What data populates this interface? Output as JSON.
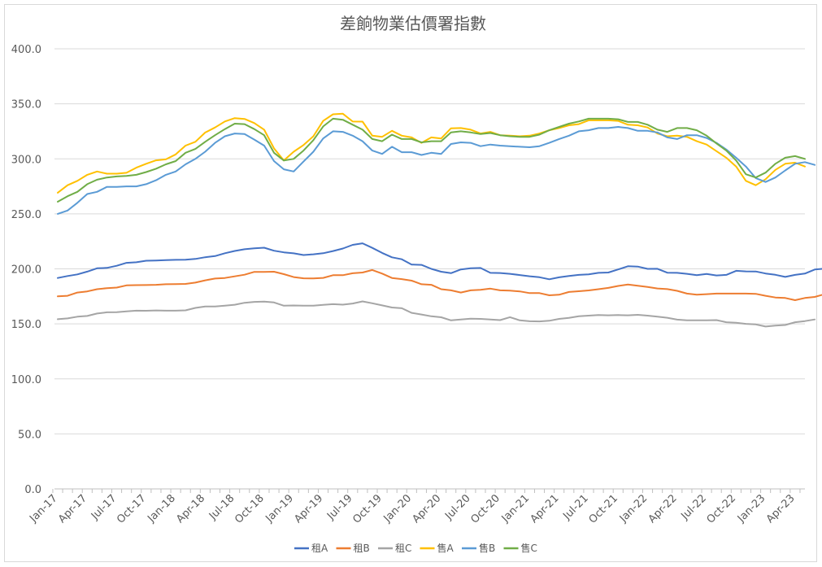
{
  "chart_data": {
    "type": "line",
    "title": "差餉物業估價署指數",
    "xlabel": "",
    "ylabel": "",
    "ylim": [
      0,
      400
    ],
    "yticks": [
      "0.0",
      "50.0",
      "100.0",
      "150.0",
      "200.0",
      "250.0",
      "300.0",
      "350.0",
      "400.0"
    ],
    "grid": true,
    "legend_position": "bottom",
    "x_tick_labels": [
      "Jan-17",
      "Apr-17",
      "Jul-17",
      "Oct-17",
      "Jan-18",
      "Apr-18",
      "Jul-18",
      "Oct-18",
      "Jan-19",
      "Apr-19",
      "Jul-19",
      "Oct-19",
      "Jan-20",
      "Apr-20",
      "Jul-20",
      "Oct-20",
      "Jan-21",
      "Apr-21",
      "Jul-21",
      "Oct-21",
      "Jan-22",
      "Apr-22",
      "Jul-22",
      "Oct-22",
      "Jan-23",
      "Apr-23"
    ],
    "x_start": "Jan-17",
    "x_end": "May-23",
    "series": [
      {
        "name": "租A",
        "color": "#4472c4",
        "values": [
          191.7,
          193.5,
          195.0,
          197.5,
          200.5,
          200.9,
          202.8,
          205.5,
          206.0,
          207.4,
          207.6,
          208.0,
          208.2,
          208.3,
          209.0,
          210.6,
          211.6,
          214.2,
          216.3,
          217.8,
          218.7,
          219.2,
          216.5,
          215.0,
          214.1,
          212.6,
          213.2,
          214.2,
          216.2,
          218.5,
          221.8,
          223.2,
          219.1,
          214.5,
          210.5,
          208.7,
          203.9,
          203.6,
          200.0,
          197.4,
          196.1,
          199.5,
          200.5,
          200.8,
          196.4,
          196.2,
          195.5,
          194.4,
          193.3,
          192.4,
          190.5,
          192.3,
          193.5,
          194.5,
          195.0,
          196.4,
          196.7,
          199.5,
          202.4,
          202.1,
          200.0,
          200.1,
          196.5,
          196.4,
          195.5,
          194.3,
          195.4,
          194.0,
          194.5,
          198.2,
          197.7,
          197.6,
          195.8,
          194.6,
          192.7,
          194.5,
          195.7,
          199.4,
          200.2
        ]
      },
      {
        "name": "租B",
        "color": "#ed7d31",
        "values": [
          175.0,
          175.5,
          178.5,
          179.5,
          181.5,
          182.5,
          183.0,
          185.0,
          185.2,
          185.3,
          185.5,
          186.0,
          186.2,
          186.3,
          187.5,
          189.6,
          191.2,
          191.7,
          193.2,
          194.7,
          197.3,
          197.2,
          197.4,
          195.2,
          192.5,
          191.4,
          191.3,
          191.8,
          194.2,
          194.2,
          196.0,
          196.7,
          199.0,
          195.7,
          191.7,
          190.7,
          189.3,
          186.0,
          185.5,
          181.5,
          180.5,
          178.5,
          180.5,
          181.0,
          182.0,
          180.5,
          180.2,
          179.5,
          178.0,
          178.0,
          176.0,
          176.5,
          179.0,
          179.7,
          180.4,
          181.5,
          182.7,
          184.5,
          185.8,
          184.7,
          183.6,
          182.2,
          181.6,
          180.0,
          177.5,
          176.5,
          177.0,
          177.5,
          177.5,
          177.5,
          177.5,
          177.3,
          175.5,
          174.0,
          173.5,
          171.5,
          173.5,
          174.5,
          177.0,
          179.0
        ]
      },
      {
        "name": "租C",
        "color": "#a5a5a5",
        "values": [
          154.2,
          155.0,
          156.5,
          157.2,
          159.4,
          160.5,
          160.7,
          161.3,
          162.0,
          161.9,
          162.2,
          162.0,
          162.0,
          162.3,
          164.5,
          165.8,
          165.8,
          166.5,
          167.4,
          169.2,
          170.0,
          170.2,
          169.5,
          166.5,
          166.7,
          166.5,
          166.5,
          167.3,
          167.9,
          167.5,
          168.5,
          170.4,
          168.7,
          166.8,
          164.9,
          164.2,
          160.0,
          158.5,
          156.9,
          156.0,
          153.2,
          154.0,
          154.7,
          154.5,
          154.0,
          153.4,
          156.1,
          153.2,
          152.4,
          152.2,
          152.8,
          154.5,
          155.5,
          156.9,
          157.5,
          158.0,
          157.8,
          158.0,
          157.8,
          158.2,
          157.5,
          156.5,
          155.6,
          153.9,
          153.2,
          153.2,
          153.2,
          153.4,
          151.5,
          151.0,
          150.0,
          149.5,
          147.6,
          148.5,
          149.0,
          151.5,
          152.5,
          154.0
        ]
      },
      {
        "name": "售A",
        "color": "#ffc000",
        "values": [
          269.2,
          276.0,
          280.0,
          285.5,
          288.5,
          286.5,
          286.5,
          287.3,
          292.0,
          295.5,
          298.6,
          299.5,
          304.0,
          312.0,
          315.5,
          323.9,
          328.5,
          334.0,
          337.0,
          336.3,
          332.5,
          326.5,
          309.5,
          298.5,
          306.5,
          312.5,
          320.5,
          334.5,
          340.5,
          341.0,
          333.9,
          333.8,
          321.0,
          320.0,
          325.5,
          321.0,
          319.5,
          314.5,
          319.5,
          318.5,
          327.8,
          328.0,
          326.5,
          323.0,
          324.5,
          321.5,
          321.0,
          320.5,
          321.0,
          323.0,
          326.0,
          328.0,
          330.5,
          331.5,
          335.0,
          335.0,
          335.0,
          334.5,
          331.0,
          330.5,
          328.5,
          323.0,
          320.5,
          321.0,
          320.0,
          316.0,
          313.0,
          307.0,
          301.0,
          293.0,
          280.0,
          276.0,
          281.5,
          290.0,
          295.5,
          296.5,
          293.0
        ]
      },
      {
        "name": "售B",
        "color": "#5b9bd5",
        "values": [
          250.0,
          253.0,
          260.0,
          268.0,
          270.0,
          274.5,
          274.5,
          275.0,
          275.0,
          277.0,
          280.5,
          285.5,
          288.5,
          295.0,
          300.0,
          306.5,
          314.5,
          320.5,
          323.0,
          322.5,
          317.5,
          312.0,
          298.0,
          290.5,
          288.5,
          297.5,
          306.5,
          318.5,
          325.0,
          324.5,
          321.0,
          316.0,
          307.5,
          304.5,
          311.0,
          306.0,
          306.0,
          303.5,
          305.5,
          304.5,
          313.5,
          315.0,
          314.5,
          311.5,
          313.0,
          312.0,
          311.5,
          311.0,
          310.5,
          311.5,
          314.5,
          318.0,
          321.0,
          325.0,
          326.0,
          328.0,
          328.0,
          329.0,
          328.0,
          325.5,
          325.5,
          324.0,
          319.5,
          318.0,
          321.5,
          321.5,
          319.0,
          314.5,
          308.5,
          301.0,
          293.0,
          282.5,
          279.0,
          283.0,
          289.5,
          295.5,
          297.0,
          294.5
        ]
      },
      {
        "name": "售C",
        "color": "#70ad47",
        "values": [
          261.0,
          266.0,
          270.0,
          277.0,
          281.0,
          283.0,
          284.0,
          284.5,
          285.5,
          288.0,
          291.0,
          295.0,
          298.0,
          305.5,
          309.0,
          315.5,
          321.5,
          327.0,
          332.0,
          331.5,
          327.0,
          321.5,
          305.5,
          298.5,
          300.0,
          307.5,
          317.0,
          329.5,
          336.5,
          335.5,
          331.0,
          326.5,
          318.0,
          316.0,
          322.0,
          318.0,
          318.0,
          315.0,
          316.0,
          316.0,
          324.0,
          325.0,
          324.0,
          322.5,
          323.5,
          321.5,
          320.5,
          320.0,
          320.0,
          322.0,
          326.0,
          329.0,
          332.0,
          334.0,
          336.5,
          336.5,
          336.5,
          336.0,
          333.5,
          333.5,
          331.0,
          326.5,
          324.5,
          328.0,
          328.0,
          326.0,
          321.0,
          314.0,
          307.5,
          298.5,
          286.0,
          283.0,
          287.5,
          295.5,
          301.0,
          302.5,
          300.0
        ]
      }
    ]
  }
}
